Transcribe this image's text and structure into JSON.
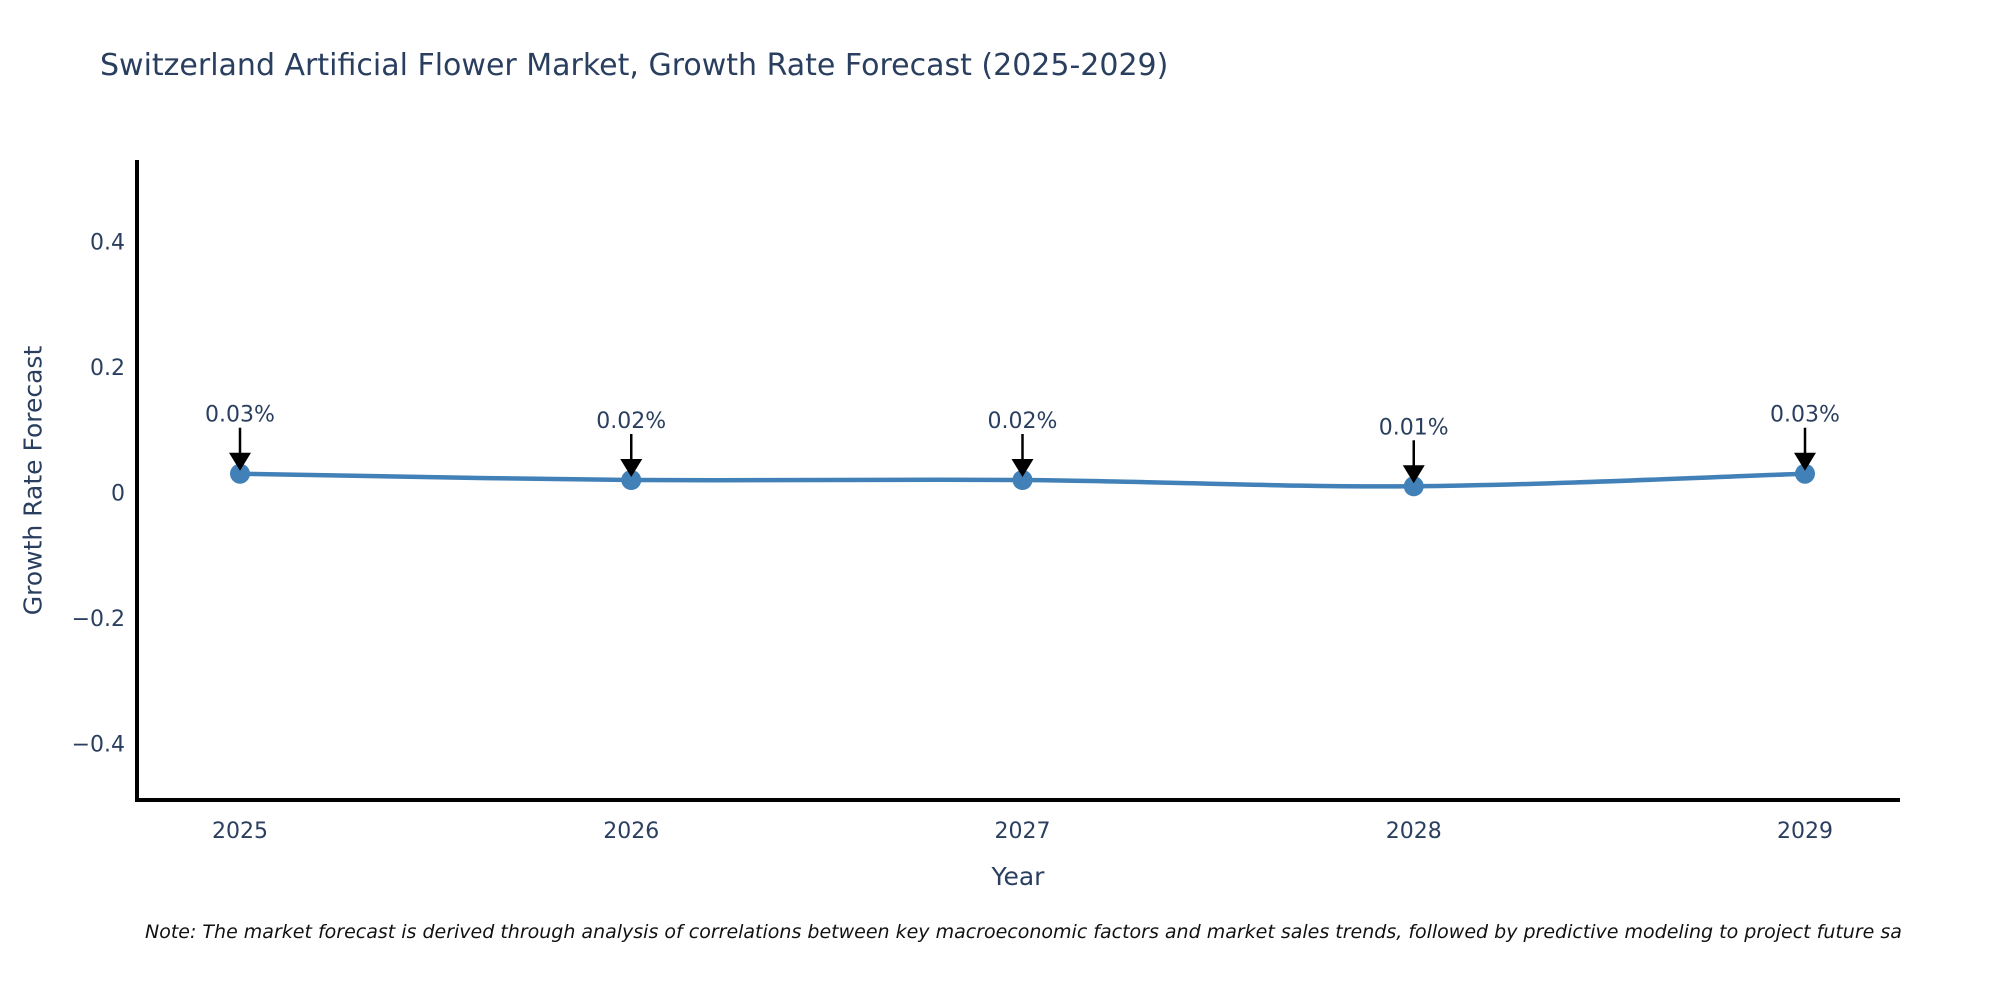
{
  "chart_data": {
    "type": "line",
    "title": "Switzerland Artificial Flower Market, Growth Rate Forecast (2025-2029)",
    "xlabel": "Year",
    "ylabel": "Growth Rate Forecast",
    "categories": [
      "2025",
      "2026",
      "2027",
      "2028",
      "2029"
    ],
    "values": [
      0.03,
      0.02,
      0.02,
      0.01,
      0.03
    ],
    "point_labels": [
      "0.03%",
      "0.02%",
      "0.02%",
      "0.01%",
      "0.03%"
    ],
    "series_name": "Growth Rate Forecast",
    "yticks": [
      {
        "v": 0.4,
        "label": "0.4"
      },
      {
        "v": 0.2,
        "label": "0.2"
      },
      {
        "v": 0,
        "label": "0"
      },
      {
        "v": -0.2,
        "label": "−0.2"
      },
      {
        "v": -0.4,
        "label": "−0.4"
      }
    ],
    "ylim": [
      -0.49,
      0.53
    ],
    "grid": false,
    "legend": false,
    "annotations": "downward arrow from each value label to its data point",
    "colors": {
      "line": "#4181b8",
      "marker": "#4181b8",
      "axis": "#000000",
      "tick_label": "#2a3f5f",
      "annotation_text": "#2a3f5f",
      "arrow": "#000000",
      "title": "#2a3f5f",
      "background": "#ffffff"
    }
  },
  "note": {
    "text": "Note: The market forecast is derived through analysis of correlations between key macroeconomic factors and market sales trends, followed by predictive modeling to project future sa"
  }
}
